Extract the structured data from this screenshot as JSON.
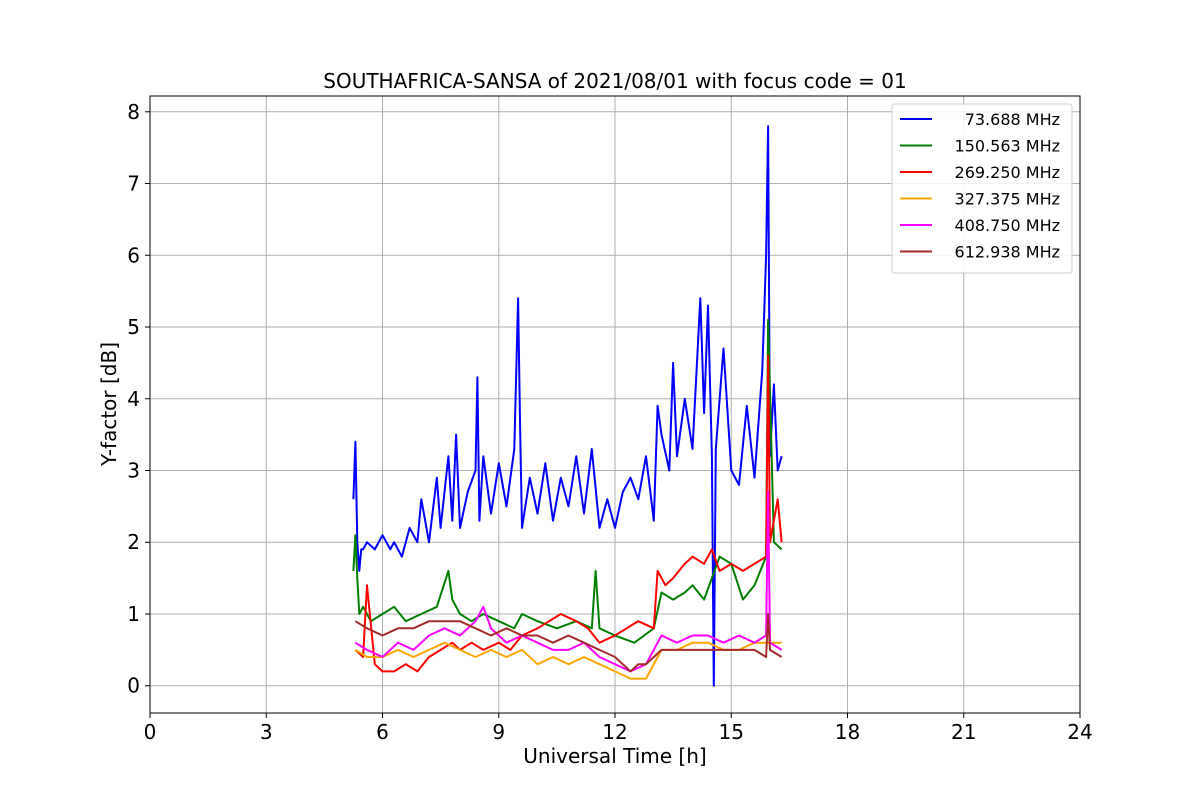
{
  "chart_data": {
    "type": "line",
    "title": "SOUTHAFRICA-SANSA of 2021/08/01 with focus code = 01",
    "xlabel": "Universal Time [h]",
    "ylabel": "Y-factor [dB]",
    "xlim": [
      0,
      24
    ],
    "ylim": [
      -0.38,
      8.22
    ],
    "xticks": [
      0,
      3,
      6,
      9,
      12,
      15,
      18,
      21,
      24
    ],
    "yticks": [
      0,
      1,
      2,
      3,
      4,
      5,
      6,
      7,
      8
    ],
    "grid": true,
    "legend_position": "top-right",
    "series": [
      {
        "name": "73.688 MHz",
        "color": "#0000ff",
        "x": [
          5.25,
          5.3,
          5.35,
          5.4,
          5.45,
          5.5,
          5.6,
          5.8,
          6.0,
          6.2,
          6.3,
          6.5,
          6.7,
          6.9,
          7.0,
          7.2,
          7.4,
          7.5,
          7.7,
          7.8,
          7.9,
          8.0,
          8.2,
          8.4,
          8.45,
          8.5,
          8.6,
          8.8,
          9.0,
          9.2,
          9.4,
          9.5,
          9.55,
          9.6,
          9.8,
          10.0,
          10.2,
          10.4,
          10.6,
          10.8,
          11.0,
          11.2,
          11.4,
          11.6,
          11.8,
          12.0,
          12.2,
          12.4,
          12.6,
          12.8,
          13.0,
          13.1,
          13.2,
          13.4,
          13.5,
          13.6,
          13.8,
          14.0,
          14.2,
          14.3,
          14.4,
          14.5,
          14.55,
          14.6,
          14.8,
          15.0,
          15.2,
          15.4,
          15.6,
          15.8,
          15.9,
          15.95,
          16.0,
          16.1,
          16.2,
          16.3
        ],
        "y": [
          2.6,
          3.4,
          2.0,
          1.6,
          1.9,
          1.9,
          2.0,
          1.9,
          2.1,
          1.9,
          2.0,
          1.8,
          2.2,
          2.0,
          2.6,
          2.0,
          2.9,
          2.2,
          3.2,
          2.3,
          3.5,
          2.2,
          2.7,
          3.0,
          4.3,
          2.3,
          3.2,
          2.4,
          3.1,
          2.5,
          3.3,
          5.4,
          3.6,
          2.2,
          2.9,
          2.4,
          3.1,
          2.3,
          2.9,
          2.5,
          3.2,
          2.4,
          3.3,
          2.2,
          2.6,
          2.2,
          2.7,
          2.9,
          2.6,
          3.2,
          2.3,
          3.9,
          3.5,
          3.0,
          4.5,
          3.2,
          4.0,
          3.3,
          5.4,
          3.8,
          5.3,
          3.2,
          0.0,
          3.3,
          4.7,
          3.0,
          2.8,
          3.9,
          2.9,
          4.4,
          6.0,
          7.8,
          3.2,
          4.2,
          3.0,
          3.2
        ]
      },
      {
        "name": "150.563 MHz",
        "color": "#008000",
        "x": [
          5.25,
          5.3,
          5.35,
          5.4,
          5.5,
          5.7,
          6.0,
          6.3,
          6.6,
          7.0,
          7.4,
          7.7,
          7.8,
          8.0,
          8.3,
          8.6,
          9.0,
          9.4,
          9.6,
          10.0,
          10.5,
          11.0,
          11.4,
          11.5,
          11.6,
          12.0,
          12.5,
          13.0,
          13.2,
          13.5,
          13.8,
          14.0,
          14.3,
          14.5,
          14.7,
          15.0,
          15.3,
          15.6,
          15.9,
          15.95,
          16.1,
          16.3
        ],
        "y": [
          1.6,
          2.1,
          1.5,
          1.0,
          1.1,
          0.9,
          1.0,
          1.1,
          0.9,
          1.0,
          1.1,
          1.6,
          1.2,
          1.0,
          0.9,
          1.0,
          0.9,
          0.8,
          1.0,
          0.9,
          0.8,
          0.9,
          0.8,
          1.6,
          0.8,
          0.7,
          0.6,
          0.8,
          1.3,
          1.2,
          1.3,
          1.4,
          1.2,
          1.5,
          1.8,
          1.7,
          1.2,
          1.4,
          1.8,
          5.1,
          2.0,
          1.9
        ]
      },
      {
        "name": "269.250 MHz",
        "color": "#ff0000",
        "x": [
          5.3,
          5.5,
          5.6,
          5.8,
          6.0,
          6.3,
          6.6,
          6.9,
          7.2,
          7.5,
          7.8,
          8.0,
          8.3,
          8.6,
          9.0,
          9.3,
          9.6,
          10.0,
          10.3,
          10.6,
          11.0,
          11.3,
          11.6,
          12.0,
          12.3,
          12.6,
          13.0,
          13.1,
          13.3,
          13.5,
          13.8,
          14.0,
          14.3,
          14.5,
          14.7,
          15.0,
          15.3,
          15.6,
          15.9,
          15.95,
          16.0,
          16.2,
          16.3
        ],
        "y": [
          0.5,
          0.4,
          1.4,
          0.3,
          0.2,
          0.2,
          0.3,
          0.2,
          0.4,
          0.5,
          0.6,
          0.5,
          0.6,
          0.5,
          0.6,
          0.5,
          0.7,
          0.8,
          0.9,
          1.0,
          0.9,
          0.8,
          0.6,
          0.7,
          0.8,
          0.9,
          0.8,
          1.6,
          1.4,
          1.5,
          1.7,
          1.8,
          1.7,
          1.9,
          1.6,
          1.7,
          1.6,
          1.7,
          1.8,
          4.6,
          2.0,
          2.6,
          2.0
        ]
      },
      {
        "name": "327.375 MHz",
        "color": "#ffa500",
        "x": [
          5.3,
          5.6,
          6.0,
          6.4,
          6.8,
          7.2,
          7.6,
          8.0,
          8.4,
          8.8,
          9.2,
          9.6,
          10.0,
          10.4,
          10.8,
          11.2,
          11.6,
          12.0,
          12.4,
          12.8,
          13.2,
          13.6,
          14.0,
          14.4,
          14.8,
          15.2,
          15.6,
          16.0,
          16.3
        ],
        "y": [
          0.5,
          0.4,
          0.4,
          0.5,
          0.4,
          0.5,
          0.6,
          0.5,
          0.4,
          0.5,
          0.4,
          0.5,
          0.3,
          0.4,
          0.3,
          0.4,
          0.3,
          0.2,
          0.1,
          0.1,
          0.5,
          0.5,
          0.6,
          0.6,
          0.5,
          0.5,
          0.6,
          0.6,
          0.6
        ]
      },
      {
        "name": "408.750 MHz",
        "color": "#ff00ff",
        "x": [
          5.3,
          5.6,
          6.0,
          6.4,
          6.8,
          7.2,
          7.6,
          8.0,
          8.4,
          8.6,
          8.8,
          9.2,
          9.6,
          10.0,
          10.4,
          10.8,
          11.2,
          11.6,
          12.0,
          12.4,
          12.8,
          13.2,
          13.6,
          14.0,
          14.4,
          14.8,
          15.2,
          15.6,
          15.9,
          15.95,
          16.0,
          16.3
        ],
        "y": [
          0.6,
          0.5,
          0.4,
          0.6,
          0.5,
          0.7,
          0.8,
          0.7,
          0.9,
          1.1,
          0.8,
          0.6,
          0.7,
          0.6,
          0.5,
          0.5,
          0.6,
          0.4,
          0.3,
          0.2,
          0.3,
          0.7,
          0.6,
          0.7,
          0.7,
          0.6,
          0.7,
          0.6,
          0.7,
          2.7,
          0.6,
          0.5
        ]
      },
      {
        "name": "612.938 MHz",
        "color": "#a52a2a",
        "x": [
          5.3,
          5.6,
          6.0,
          6.4,
          6.8,
          7.2,
          7.6,
          8.0,
          8.4,
          8.8,
          9.2,
          9.6,
          10.0,
          10.4,
          10.8,
          11.2,
          11.6,
          12.0,
          12.4,
          12.6,
          12.8,
          13.0,
          13.2,
          13.6,
          14.0,
          14.4,
          14.8,
          15.2,
          15.6,
          15.9,
          15.95,
          16.0,
          16.3
        ],
        "y": [
          0.9,
          0.8,
          0.7,
          0.8,
          0.8,
          0.9,
          0.9,
          0.9,
          0.8,
          0.7,
          0.8,
          0.7,
          0.7,
          0.6,
          0.7,
          0.6,
          0.5,
          0.4,
          0.2,
          0.3,
          0.3,
          0.4,
          0.5,
          0.5,
          0.5,
          0.5,
          0.5,
          0.5,
          0.5,
          0.4,
          1.0,
          0.5,
          0.4
        ]
      }
    ]
  }
}
